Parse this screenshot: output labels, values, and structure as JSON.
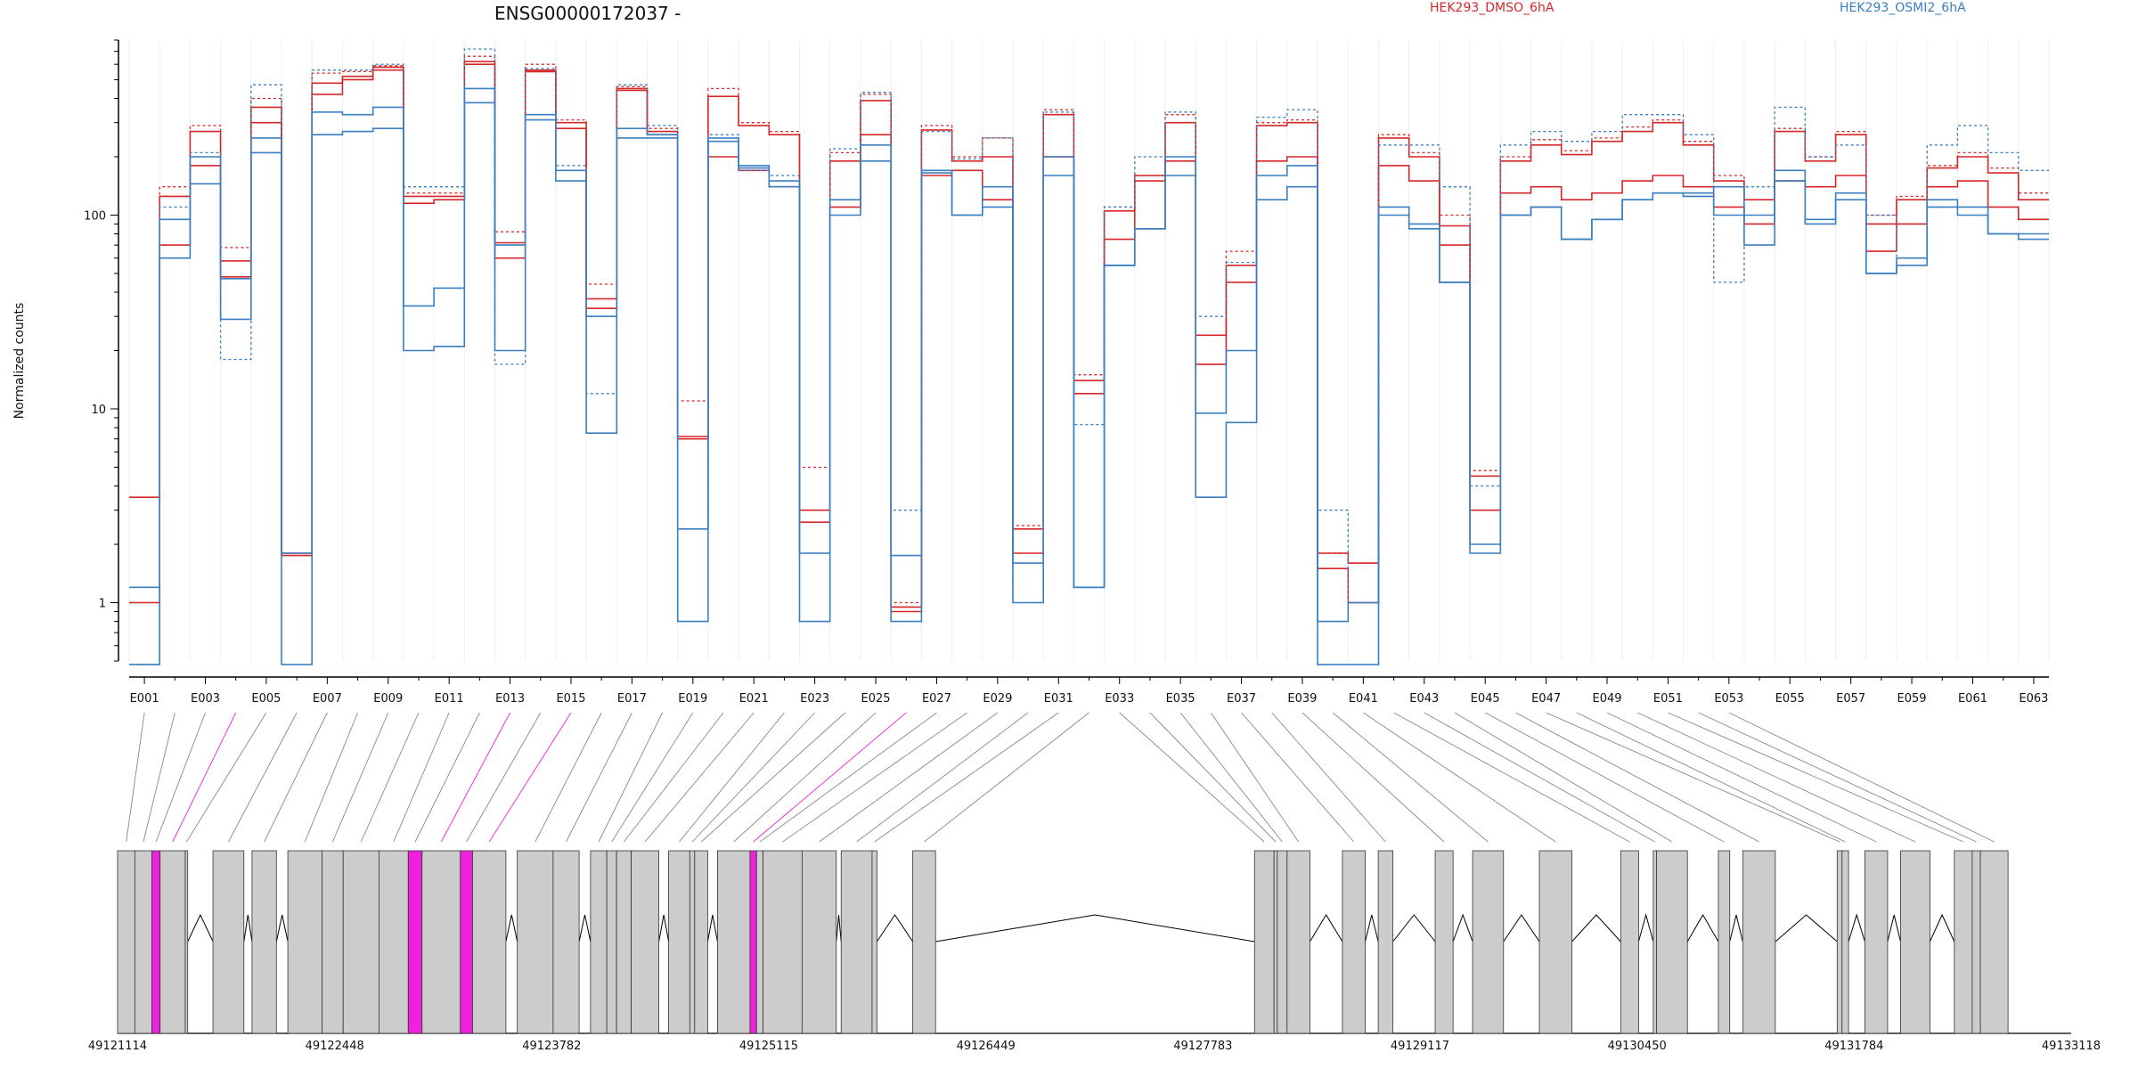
{
  "chart_data": {
    "type": "line",
    "title": "ENSG00000172037 -",
    "ylabel": "Normalized counts",
    "xlabel": "",
    "yscale": "log",
    "ylim": [
      0.5,
      800
    ],
    "yticks": [
      1,
      10,
      100
    ],
    "grid": "vertical",
    "legend_placement": "top",
    "colors": {
      "dmso": "#d62728",
      "osmi": "#3a7fc1",
      "highlight": "#ee22dd",
      "exon": "#cccccc"
    },
    "categories": [
      "E001",
      "E002",
      "E003",
      "E004",
      "E005",
      "E006",
      "E007",
      "E008",
      "E009",
      "E010",
      "E011",
      "E012",
      "E013",
      "E014",
      "E015",
      "E016",
      "E017",
      "E018",
      "E019",
      "E020",
      "E021",
      "E022",
      "E023",
      "E024",
      "E025",
      "E026",
      "E027",
      "E028",
      "E029",
      "E030",
      "E031",
      "E032",
      "E033",
      "E034",
      "E035",
      "E036",
      "E037",
      "E038",
      "E039",
      "E040",
      "E041",
      "E042",
      "E043",
      "E044",
      "E045",
      "E046",
      "E047",
      "E048",
      "E049",
      "E050",
      "E051",
      "E052",
      "E053",
      "E054",
      "E055",
      "E056",
      "E057",
      "E058",
      "E059",
      "E060",
      "E061",
      "E062",
      "E063"
    ],
    "tick_labels": [
      "E001",
      "E003",
      "E005",
      "E007",
      "E009",
      "E011",
      "E013",
      "E015",
      "E017",
      "E019",
      "E021",
      "E023",
      "E025",
      "E027",
      "E029",
      "E031",
      "E033",
      "E035",
      "E037",
      "E039",
      "E041",
      "E043",
      "E045",
      "E047",
      "E049",
      "E051",
      "E053",
      "E055",
      "E057",
      "E059",
      "E061",
      "E063"
    ],
    "series": [
      {
        "name": "HEK293_DMSO_6hA",
        "group": "dmso",
        "dashed": false,
        "values": [
          3.5,
          125,
          270,
          58,
          360,
          1.8,
          480,
          520,
          580,
          125,
          125,
          620,
          72,
          560,
          300,
          37,
          440,
          270,
          7.2,
          410,
          290,
          260,
          3.0,
          190,
          390,
          0.95,
          275,
          190,
          200,
          2.4,
          330,
          14,
          105,
          150,
          300,
          24,
          55,
          290,
          300,
          1.8,
          1.6,
          250,
          200,
          88,
          4.5,
          190,
          230,
          205,
          240,
          270,
          300,
          230,
          150,
          120,
          270,
          190,
          260,
          90,
          120,
          175,
          200,
          165,
          120
        ]
      },
      {
        "name": "HEK293_DMSO_6hA",
        "group": "dmso",
        "dashed": false,
        "values": [
          1.0,
          70,
          180,
          48,
          300,
          1.75,
          420,
          500,
          560,
          115,
          120,
          600,
          60,
          550,
          280,
          33,
          450,
          260,
          7.0,
          200,
          170,
          140,
          2.6,
          110,
          260,
          0.9,
          160,
          170,
          120,
          1.8,
          200,
          12,
          75,
          160,
          190,
          17,
          45,
          190,
          200,
          1.5,
          1.0,
          180,
          150,
          70,
          3.0,
          130,
          140,
          120,
          130,
          150,
          160,
          140,
          110,
          90,
          150,
          140,
          160,
          65,
          90,
          140,
          150,
          110,
          95
        ]
      },
      {
        "name": "HEK293_DMSO_6hA",
        "group": "dmso",
        "dashed": true,
        "values": [
          1.0,
          140,
          290,
          68,
          400,
          1.8,
          540,
          550,
          590,
          130,
          130,
          660,
          82,
          600,
          310,
          44,
          460,
          280,
          11,
          450,
          300,
          270,
          5.0,
          210,
          420,
          1.0,
          290,
          200,
          250,
          2.5,
          350,
          15,
          110,
          160,
          330,
          24,
          65,
          300,
          310,
          1.8,
          1.6,
          260,
          210,
          100,
          4.8,
          200,
          245,
          215,
          250,
          285,
          310,
          240,
          160,
          120,
          280,
          200,
          270,
          100,
          125,
          180,
          210,
          175,
          130
        ]
      },
      {
        "name": "HEK293_OSMI2_6hA",
        "group": "osmi",
        "dashed": false,
        "values": [
          1.2,
          95,
          200,
          47,
          250,
          1.8,
          340,
          330,
          360,
          34,
          42,
          450,
          70,
          330,
          170,
          30,
          280,
          260,
          2.4,
          250,
          180,
          150,
          1.8,
          120,
          230,
          1.75,
          170,
          100,
          140,
          1.6,
          200,
          1.2,
          55,
          85,
          200,
          9.5,
          20,
          160,
          180,
          0.8,
          1.0,
          110,
          90,
          45,
          2.0,
          100,
          110,
          75,
          95,
          120,
          130,
          130,
          140,
          100,
          170,
          90,
          130,
          50,
          55,
          110,
          110,
          80,
          80
        ]
      },
      {
        "name": "HEK293_OSMI2_6hA",
        "group": "osmi",
        "dashed": false,
        "values": [
          0.48,
          60,
          145,
          29,
          210,
          0.48,
          260,
          270,
          280,
          20,
          21,
          380,
          20,
          310,
          150,
          7.5,
          250,
          250,
          0.8,
          240,
          175,
          140,
          0.8,
          100,
          190,
          0.8,
          165,
          100,
          110,
          1.0,
          160,
          1.2,
          55,
          85,
          160,
          3.5,
          8.5,
          120,
          140,
          0.48,
          0.48,
          100,
          85,
          45,
          1.8,
          100,
          110,
          75,
          95,
          120,
          130,
          125,
          100,
          70,
          150,
          95,
          120,
          50,
          60,
          120,
          100,
          80,
          75
        ]
      },
      {
        "name": "HEK293_OSMI2_6hA",
        "group": "osmi",
        "dashed": true,
        "values": [
          0.48,
          110,
          210,
          18,
          470,
          1.8,
          560,
          560,
          600,
          140,
          140,
          720,
          17,
          570,
          180,
          12,
          470,
          290,
          2.4,
          260,
          170,
          160,
          1.8,
          220,
          430,
          3.0,
          270,
          195,
          250,
          1.0,
          340,
          8.3,
          110,
          200,
          340,
          30,
          57,
          320,
          350,
          3.0,
          1.0,
          230,
          230,
          140,
          4.0,
          230,
          270,
          240,
          270,
          330,
          330,
          260,
          45,
          140,
          360,
          200,
          230,
          100,
          60,
          230,
          290,
          210,
          170
        ]
      }
    ],
    "legend": [
      {
        "label": "HEK293_DMSO_6hA",
        "color_key": "dmso"
      },
      {
        "label": "HEK293_OSMI2_6hA",
        "color_key": "osmi"
      }
    ],
    "gene_model": {
      "coord_labels": [
        "49121114",
        "49122448",
        "49123782",
        "49125115",
        "49126449",
        "49127783",
        "49129117",
        "49130450",
        "49131784",
        "49133118"
      ],
      "coord_range": [
        49121114,
        49133118
      ],
      "exons": [
        {
          "start": 49121114,
          "end": 49121220,
          "highlight": false
        },
        {
          "start": 49121220,
          "end": 49121325,
          "highlight": false
        },
        {
          "start": 49121325,
          "end": 49121375,
          "highlight": true
        },
        {
          "start": 49121375,
          "end": 49121530,
          "highlight": false
        },
        {
          "start": 49121530,
          "end": 49121545,
          "highlight": false
        },
        {
          "start": 49121700,
          "end": 49121890,
          "highlight": false
        },
        {
          "start": 49121940,
          "end": 49122090,
          "highlight": false
        },
        {
          "start": 49122160,
          "end": 49122370,
          "highlight": false
        },
        {
          "start": 49122370,
          "end": 49122500,
          "highlight": false
        },
        {
          "start": 49122500,
          "end": 49122720,
          "highlight": false
        },
        {
          "start": 49122720,
          "end": 49122900,
          "highlight": false
        },
        {
          "start": 49122900,
          "end": 49122985,
          "highlight": true
        },
        {
          "start": 49122985,
          "end": 49123220,
          "highlight": false
        },
        {
          "start": 49123220,
          "end": 49123295,
          "highlight": true
        },
        {
          "start": 49123295,
          "end": 49123500,
          "highlight": false
        },
        {
          "start": 49123570,
          "end": 49123790,
          "highlight": false
        },
        {
          "start": 49123790,
          "end": 49123950,
          "highlight": false
        },
        {
          "start": 49124020,
          "end": 49124120,
          "highlight": false
        },
        {
          "start": 49124120,
          "end": 49124180,
          "highlight": false
        },
        {
          "start": 49124180,
          "end": 49124270,
          "highlight": false
        },
        {
          "start": 49124270,
          "end": 49124440,
          "highlight": false
        },
        {
          "start": 49124500,
          "end": 49124630,
          "highlight": false
        },
        {
          "start": 49124630,
          "end": 49124660,
          "highlight": false
        },
        {
          "start": 49124660,
          "end": 49124740,
          "highlight": false
        },
        {
          "start": 49124800,
          "end": 49125000,
          "highlight": false
        },
        {
          "start": 49125000,
          "end": 49125040,
          "highlight": true
        },
        {
          "start": 49125040,
          "end": 49125080,
          "highlight": false
        },
        {
          "start": 49125080,
          "end": 49125320,
          "highlight": false
        },
        {
          "start": 49125320,
          "end": 49125530,
          "highlight": false
        },
        {
          "start": 49125560,
          "end": 49125750,
          "highlight": false
        },
        {
          "start": 49125750,
          "end": 49125780,
          "highlight": false
        },
        {
          "start": 49126000,
          "end": 49126140,
          "highlight": false
        },
        {
          "start": 49128100,
          "end": 49128220,
          "highlight": false
        },
        {
          "start": 49128220,
          "end": 49128240,
          "highlight": false
        },
        {
          "start": 49128240,
          "end": 49128300,
          "highlight": false
        },
        {
          "start": 49128300,
          "end": 49128440,
          "highlight": false
        },
        {
          "start": 49128640,
          "end": 49128780,
          "highlight": false
        },
        {
          "start": 49128860,
          "end": 49128950,
          "highlight": false
        },
        {
          "start": 49129210,
          "end": 49129320,
          "highlight": false
        },
        {
          "start": 49129440,
          "end": 49129630,
          "highlight": false
        },
        {
          "start": 49129850,
          "end": 49130050,
          "highlight": false
        },
        {
          "start": 49130350,
          "end": 49130460,
          "highlight": false
        },
        {
          "start": 49130550,
          "end": 49130570,
          "highlight": false
        },
        {
          "start": 49130570,
          "end": 49130760,
          "highlight": false
        },
        {
          "start": 49130950,
          "end": 49131020,
          "highlight": false
        },
        {
          "start": 49131100,
          "end": 49131300,
          "highlight": false
        },
        {
          "start": 49131680,
          "end": 49131710,
          "highlight": false
        },
        {
          "start": 49131710,
          "end": 49131750,
          "highlight": false
        },
        {
          "start": 49131850,
          "end": 49131990,
          "highlight": false
        },
        {
          "start": 49132070,
          "end": 49132250,
          "highlight": false
        },
        {
          "start": 49132400,
          "end": 49132510,
          "highlight": false
        },
        {
          "start": 49132510,
          "end": 49132560,
          "highlight": false
        },
        {
          "start": 49132560,
          "end": 49132730,
          "highlight": false
        }
      ],
      "link_highlights": [
        3,
        12,
        14,
        25
      ]
    }
  }
}
